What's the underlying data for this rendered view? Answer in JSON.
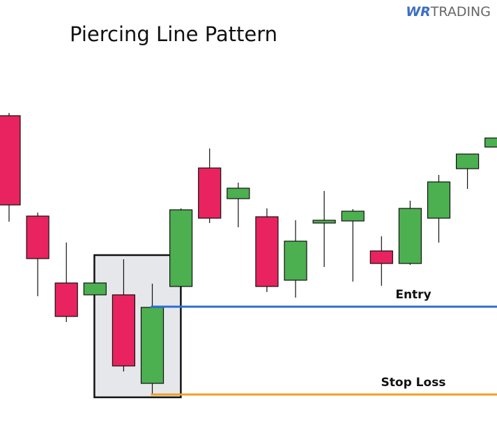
{
  "brand": {
    "mark": "WR",
    "name": "TRADING"
  },
  "chart_data": {
    "type": "candlestick",
    "title": "Piercing Line Pattern",
    "categories": [
      null,
      null,
      null,
      null,
      null,
      null,
      null,
      null,
      null,
      null,
      null,
      null,
      null,
      null,
      null,
      null,
      null,
      null
    ],
    "open": [
      438,
      294,
      198,
      181,
      181,
      54,
      193,
      363,
      319,
      293,
      202,
      284,
      287,
      244,
      226,
      291,
      362,
      393
    ],
    "close": [
      310,
      233,
      150,
      198,
      79,
      163,
      303,
      291,
      334,
      193,
      258,
      288,
      301,
      226,
      305,
      343,
      383,
      406
    ],
    "high": [
      442,
      299,
      256,
      198,
      232,
      197,
      305,
      391,
      342,
      305,
      288,
      330,
      304,
      265,
      316,
      353,
      383,
      406
    ],
    "low": [
      286,
      179,
      142,
      181,
      71,
      39,
      193,
      284,
      278,
      185,
      177,
      221,
      200,
      194,
      224,
      256,
      333,
      393
    ],
    "up_color": "#4caf50",
    "down_color": "#e8235f",
    "ylim": [
      0,
      604
    ],
    "annotations": [
      {
        "label": "Entry",
        "value": 164,
        "color": "#2f6bd6"
      },
      {
        "label": "Stop Loss",
        "value": 38,
        "color": "#f0a020"
      }
    ]
  }
}
